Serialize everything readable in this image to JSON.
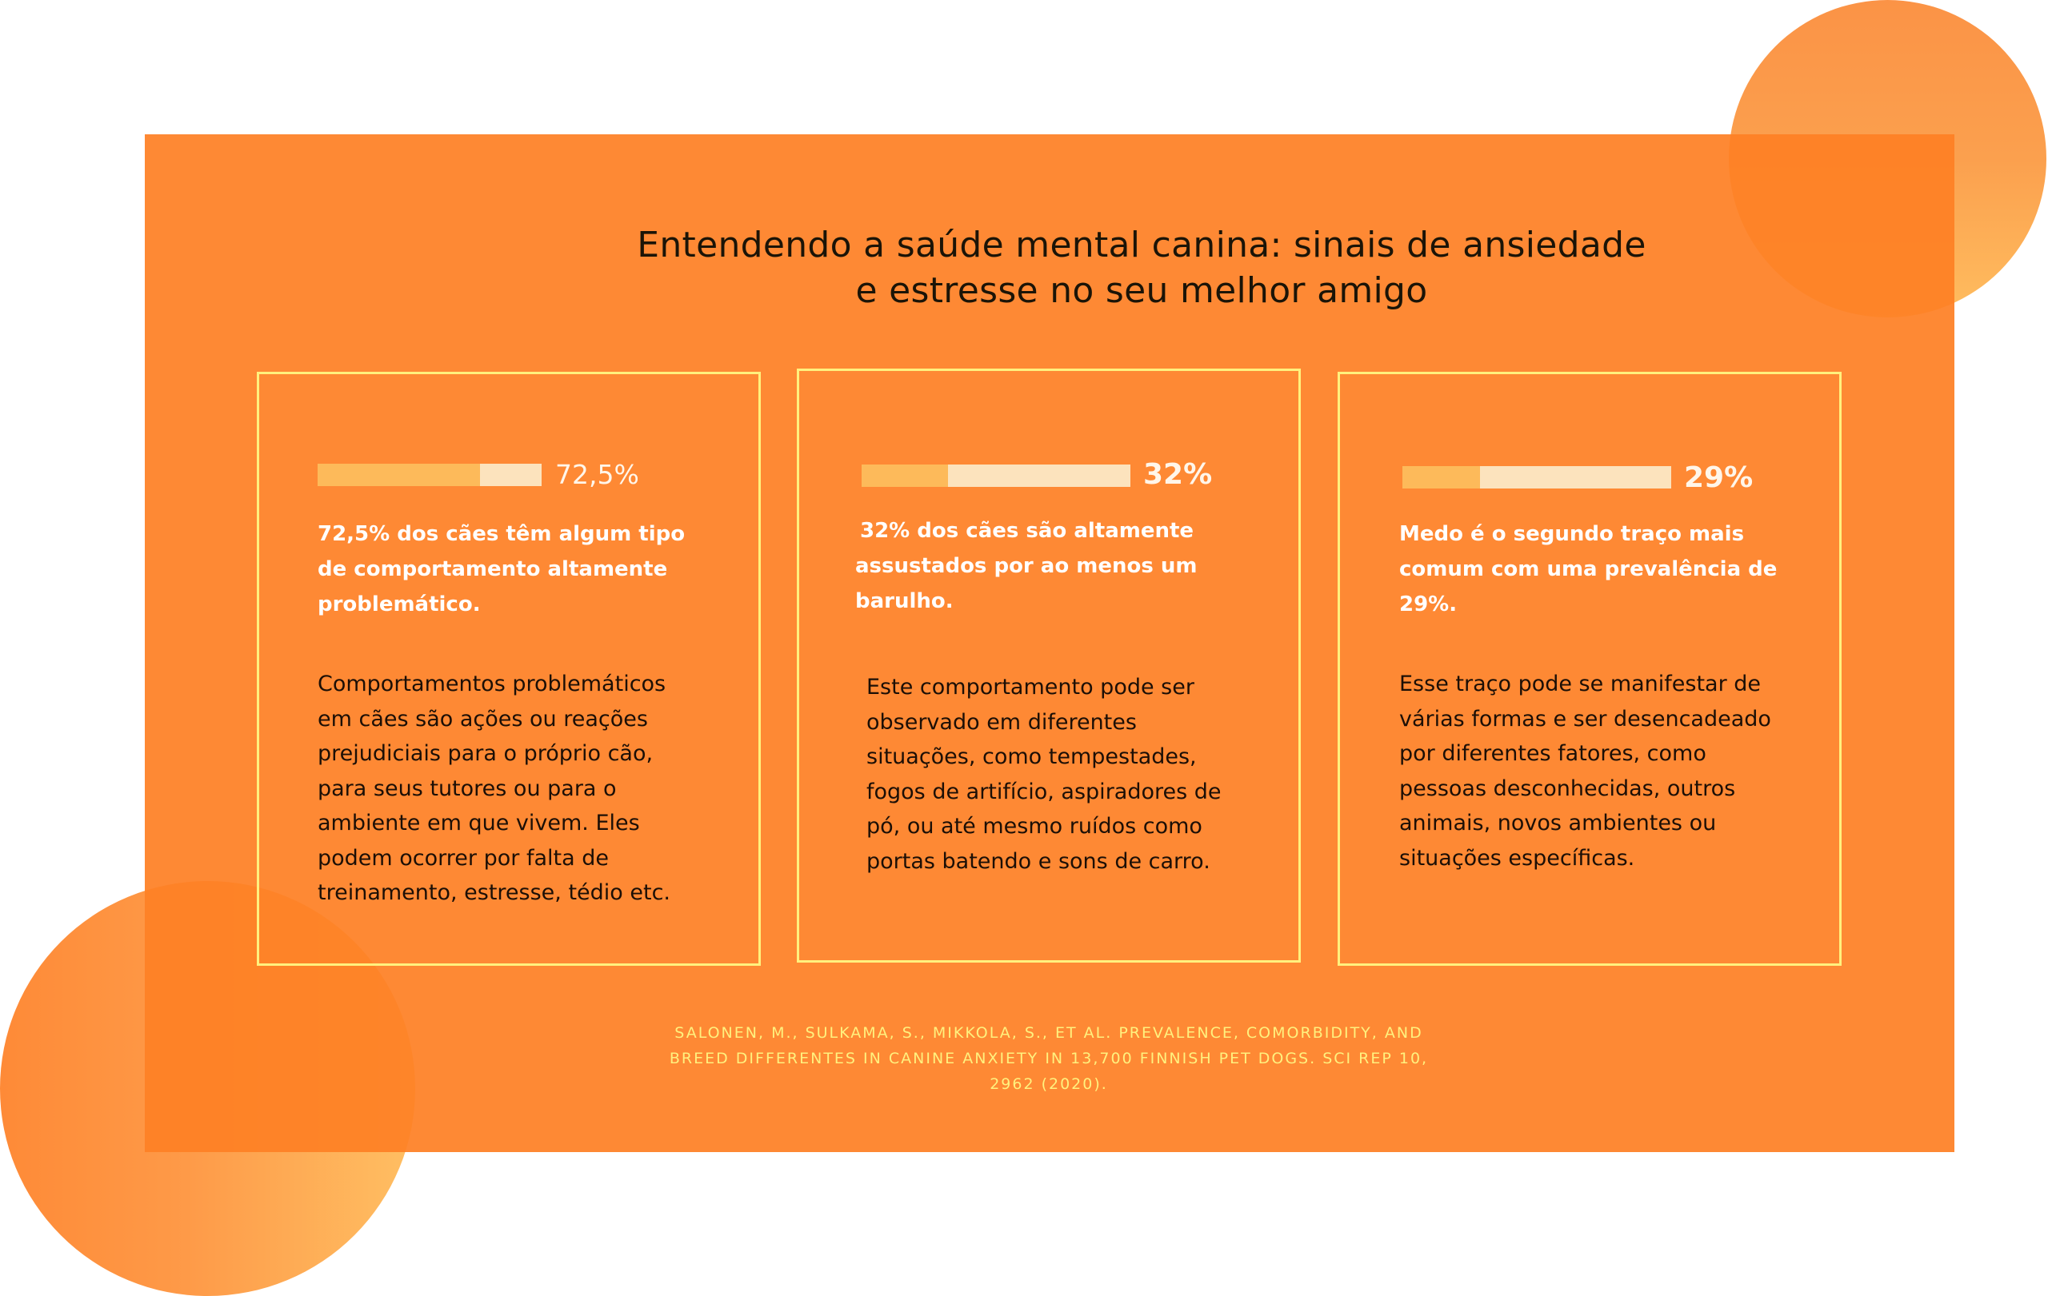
{
  "title": "Entendendo a saúde mental canina: sinais de ansiedade e estresse no seu melhor amigo",
  "colors": {
    "panel": "#fe8025",
    "card_border": "#fff17e",
    "bar_track": "#fce3bd",
    "bar_fill": "#fdba5a",
    "citation": "#fff17e"
  },
  "cards": [
    {
      "percent_label": "72,5%",
      "bar_fill_fraction": 0.725,
      "headline": "72,5% dos cães têm algum tipo de comportamento altamente problemático.",
      "body": "Comportamentos problemáticos em cães são ações ou reações prejudiciais para o próprio cão, para seus tutores ou para o ambiente em que vivem. Eles podem ocorrer por falta de treinamento, estresse, tédio etc."
    },
    {
      "percent_label": "32%",
      "bar_fill_fraction": 0.32,
      "headline": "32% dos cães são altamente assustados por ao menos um barulho.",
      "body": "Este comportamento pode ser observado em diferentes situações, como tempestades, fogos de artifício, aspiradores de pó, ou até mesmo ruídos como portas batendo e sons de carro."
    },
    {
      "percent_label": "29%",
      "bar_fill_fraction": 0.29,
      "headline": "Medo é o segundo traço mais comum com uma prevalência de 29%.",
      "body": "Esse traço pode se manifestar de várias formas e ser desencadeado por diferentes fatores, como pessoas desconhecidas, outros animais, novos ambientes ou situações específicas."
    }
  ],
  "citation": "SALONEN, M., SULKAMA, S., MIKKOLA, S., ET AL. PREVALENCE, COMORBIDITY, AND BREED DIFFERENTES IN CANINE ANXIETY IN 13,700 FINNISH PET DOGS. SCI REP 10, 2962 (2020)."
}
